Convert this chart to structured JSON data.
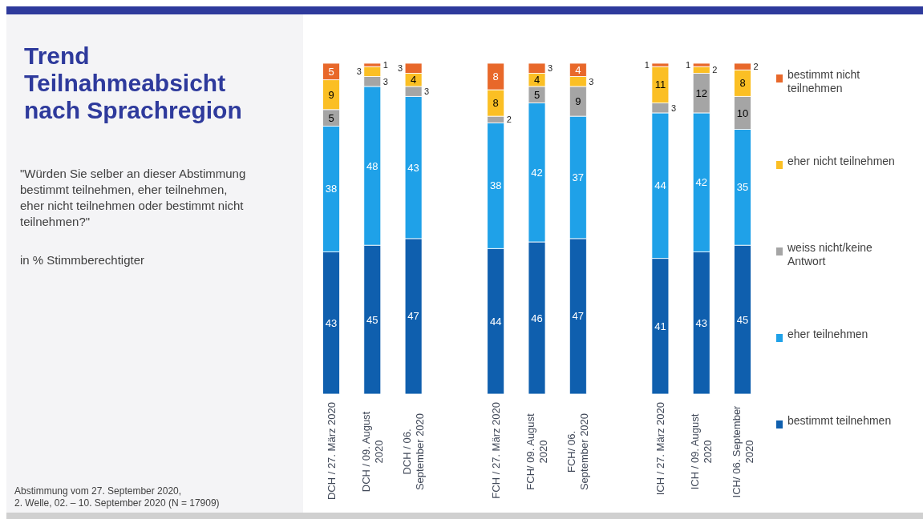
{
  "chart_data": {
    "type": "bar",
    "stacked": true,
    "data_labels": true,
    "legend": "right",
    "ylim": [
      0,
      100
    ],
    "title": "Trend\nTeilnahmeabsicht\nnach Sprachregion",
    "subtitle": "\"Würden Sie selber an dieser Abstimmung\nbestimmt teilnehmen, eher teilnehmen,\neher nicht teilnehmen oder bestimmt nicht\nteilnehmen?\"",
    "annotations": [
      "in % Stimmberechtigter",
      "Abstimmung vom 27. September 2020,\n2. Welle, 02. – 10. September 2020 (N = 17909)"
    ],
    "categories": [
      "DCH / 27. März 2020",
      "DCH / 09. August\n2020",
      "DCH / 06.\nSeptember 2020",
      null,
      "FCH / 27. März 2020",
      "FCH/ 09. August\n2020",
      "FCH/ 06.\nSeptember 2020",
      null,
      "ICH / 27. März 2020",
      "ICH / 09. August\n2020",
      "ICH/ 06. September\n2020"
    ],
    "series": [
      {
        "name": "bestimmt teilnehmen",
        "color": "#0f5fae",
        "values": [
          43,
          45,
          47,
          null,
          44,
          46,
          47,
          null,
          41,
          43,
          45
        ]
      },
      {
        "name": "eher teilnehmen",
        "color": "#1fa1e8",
        "values": [
          38,
          48,
          43,
          null,
          38,
          42,
          37,
          null,
          44,
          42,
          35
        ]
      },
      {
        "name": "weiss nicht/keine\nAntwort",
        "color": "#a5a5a5",
        "values": [
          5,
          3,
          3,
          null,
          2,
          5,
          9,
          null,
          3,
          12,
          10
        ]
      },
      {
        "name": "eher nicht teilnehmen",
        "color": "#fbbf24",
        "values": [
          9,
          3,
          4,
          null,
          8,
          4,
          3,
          null,
          11,
          2,
          8
        ]
      },
      {
        "name": "bestimmt nicht\nteilnehmen",
        "color": "#e8682a",
        "values": [
          5,
          1,
          3,
          null,
          8,
          3,
          4,
          null,
          1,
          1,
          2
        ]
      }
    ]
  }
}
